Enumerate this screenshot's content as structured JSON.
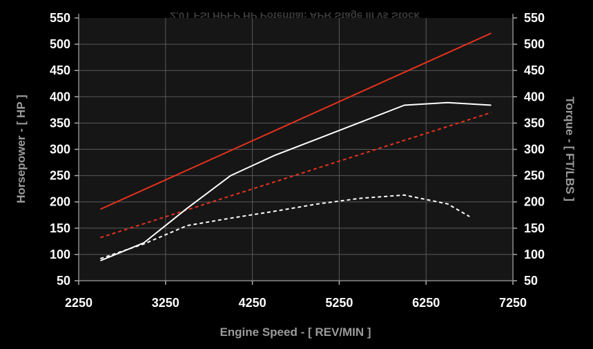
{
  "chart_data": {
    "type": "line",
    "title": "2.0T FSI HPFP HP Potential: APR Stage III vs Stock",
    "xlabel": "Engine Speed - [ REV/MIN ]",
    "ylabel_left": "Horsepower - [ HP ]",
    "ylabel_right": "Torque - [ FT/LBS ]",
    "xlim": [
      2250,
      7250
    ],
    "ylim": [
      50,
      550
    ],
    "x_ticks": [
      "2250",
      "3250",
      "4250",
      "5250",
      "6250",
      "7250"
    ],
    "y_ticks": [
      "50",
      "100",
      "150",
      "200",
      "250",
      "300",
      "350",
      "400",
      "450",
      "500",
      "550"
    ],
    "grid": true,
    "colors": {
      "background": "#000000",
      "plot_bg": "#161616",
      "grid": "#5a5a5a",
      "red": "#e8321e",
      "white": "#ffffff"
    },
    "series": [
      {
        "style": "solid",
        "color": "#e8321e",
        "points": [
          [
            2500,
            186
          ],
          [
            7000,
            521
          ]
        ]
      },
      {
        "style": "dashed",
        "color": "#e8321e",
        "points": [
          [
            2500,
            132
          ],
          [
            7000,
            370
          ]
        ]
      },
      {
        "style": "solid",
        "color": "#ffffff",
        "points": [
          [
            2500,
            88
          ],
          [
            3000,
            122
          ],
          [
            3500,
            188
          ],
          [
            4000,
            250
          ],
          [
            4500,
            288
          ],
          [
            5000,
            320
          ],
          [
            5500,
            352
          ],
          [
            6000,
            384
          ],
          [
            6500,
            389
          ],
          [
            7000,
            384
          ]
        ]
      },
      {
        "style": "dashed",
        "color": "#ffffff",
        "points": [
          [
            2500,
            92
          ],
          [
            3000,
            120
          ],
          [
            3500,
            155
          ],
          [
            4000,
            169
          ],
          [
            4500,
            182
          ],
          [
            5000,
            196
          ],
          [
            5500,
            207
          ],
          [
            6000,
            213
          ],
          [
            6500,
            196
          ],
          [
            6750,
            172
          ]
        ]
      }
    ]
  }
}
